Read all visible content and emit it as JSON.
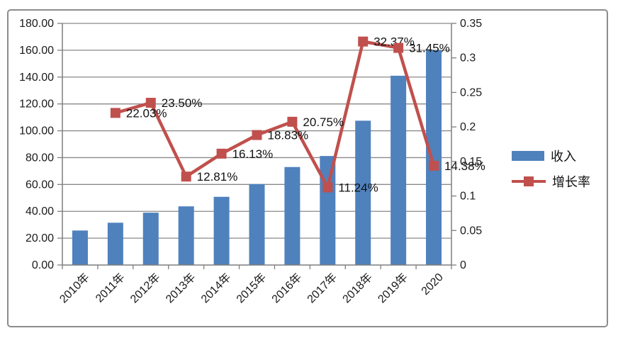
{
  "chart_data": {
    "type": "combo",
    "categories": [
      "2010年",
      "2011年",
      "2012年",
      "2013年",
      "2014年",
      "2015年",
      "2016年",
      "2017年",
      "2018年",
      "2019年",
      "2020"
    ],
    "series": [
      {
        "name": "收入",
        "type": "bar",
        "axis": "left",
        "color": "#4F81BD",
        "values": [
          25.7,
          31.5,
          39.0,
          43.7,
          50.8,
          60.3,
          73.0,
          81.2,
          107.5,
          141.0,
          160.0
        ]
      },
      {
        "name": "增长率",
        "type": "line",
        "axis": "right",
        "color": "#C0504D",
        "values": [
          null,
          0.2203,
          0.235,
          0.1281,
          0.1613,
          0.1883,
          0.2075,
          0.1124,
          0.3237,
          0.3145,
          0.1438
        ],
        "labels": [
          null,
          "22.03%",
          "23.50%",
          "12.81%",
          "16.13%",
          "18.83%",
          "20.75%",
          "11.24%",
          "32.37%",
          "31.45%",
          "14.38%"
        ]
      }
    ],
    "left_axis": {
      "min": 0,
      "max": 180,
      "step": 20,
      "ticks": [
        "0.00",
        "20.00",
        "40.00",
        "60.00",
        "80.00",
        "100.00",
        "120.00",
        "140.00",
        "160.00",
        "180.00"
      ]
    },
    "right_axis": {
      "min": 0,
      "max": 0.35,
      "step": 0.05,
      "ticks": [
        "0",
        "0.05",
        "0.1",
        "0.15",
        "0.2",
        "0.25",
        "0.3",
        "0.35"
      ]
    },
    "title": "",
    "grid": true,
    "legend_position": "right",
    "colors": {
      "grid": "#8A8A8A",
      "axis": "#7F7F7F",
      "text": "#1A1A1A",
      "frame_border": "#8C8C8C"
    }
  }
}
